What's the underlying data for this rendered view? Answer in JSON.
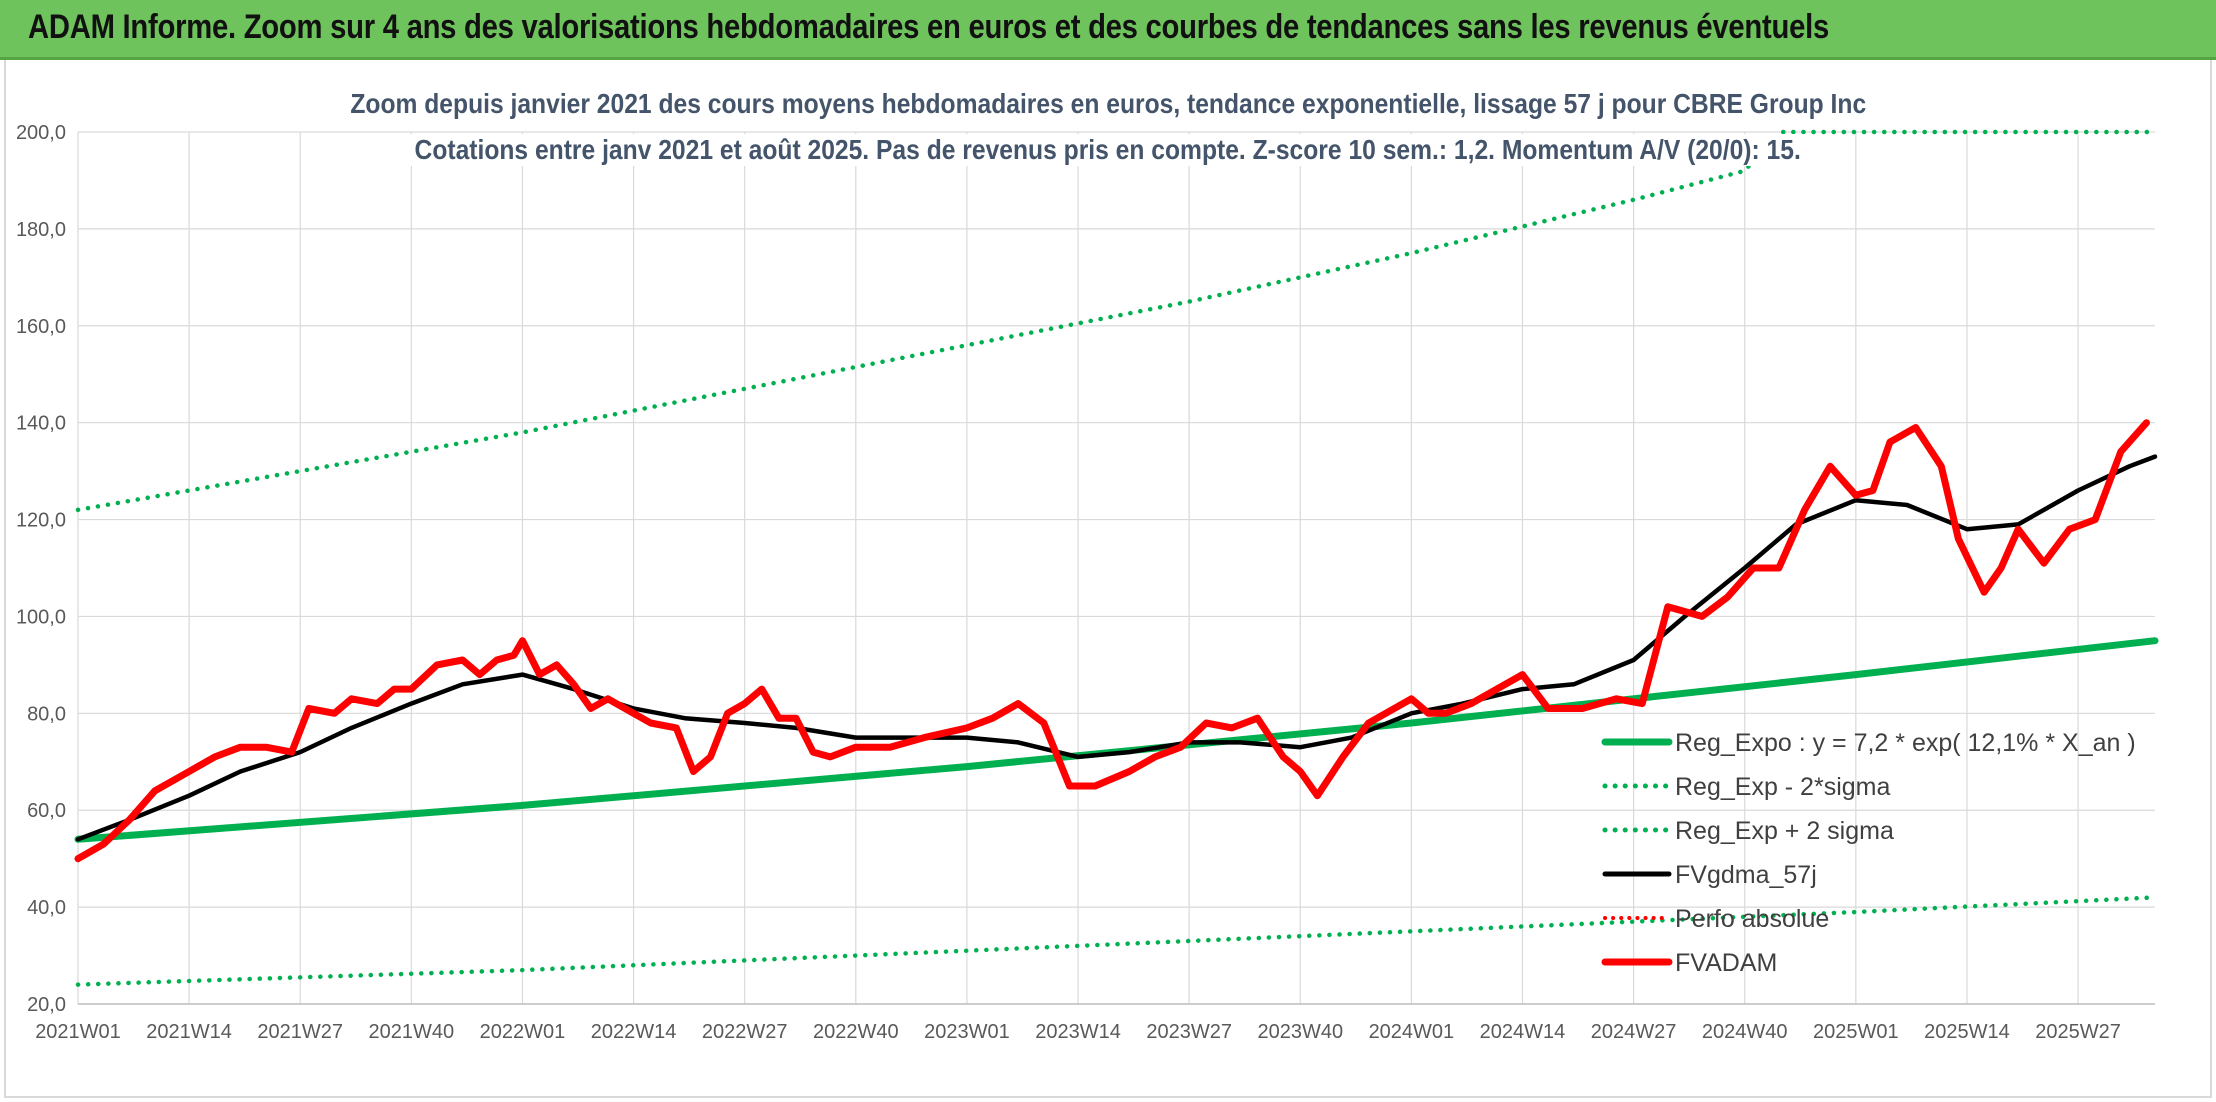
{
  "banner": {
    "title": "ADAM Informe. Zoom sur 4 ans des valorisations hebdomadaires en euros et des courbes de tendances sans les revenus éventuels"
  },
  "chart_data": {
    "type": "line",
    "title": "ADAM Informe. Zoom sur 4 ans des valorisations hebdomadaires en euros et des courbes de tendances sans les revenus éventuels",
    "subtitle": [
      "Zoom depuis janvier 2021 des cours moyens hebdomadaires en euros, tendance exponentielle, lissage 57 j pour CBRE Group Inc",
      "Cotations entre janv 2021 et août 2025. Pas de revenus pris en compte. Z-score 10 sem.: 1,2. Momentum A/V (20/0): 15."
    ],
    "xlabel": "",
    "ylabel": "",
    "x_ticks": [
      "2021W01",
      "2021W14",
      "2021W27",
      "2021W40",
      "2022W01",
      "2022W14",
      "2022W27",
      "2022W40",
      "2023W01",
      "2023W14",
      "2023W27",
      "2023W40",
      "2024W01",
      "2024W14",
      "2024W27",
      "2024W40",
      "2025W01",
      "2025W14",
      "2025W27"
    ],
    "ylim": [
      20,
      200
    ],
    "y_ticks": [
      20,
      40,
      60,
      80,
      100,
      120,
      140,
      160,
      180,
      200
    ],
    "y_tick_labels": [
      "20,0",
      "40,0",
      "60,0",
      "80,0",
      "100,0",
      "120,0",
      "140,0",
      "160,0",
      "180,0",
      "200,0"
    ],
    "grid": true,
    "legend_position": "right",
    "legend": [
      "Reg_Expo : y = 7,2 * exp( 12,1% *  X_an )",
      "Reg_Exp - 2*sigma",
      "Reg_Exp + 2 sigma",
      "FVgdma_57j",
      "Perfo absolue",
      "FVADAM"
    ],
    "colors": {
      "trend": "#00b050",
      "band": "#00b050",
      "smooth": "#000000",
      "perfo": "#ff0000",
      "price": "#ff0000"
    },
    "series": [
      {
        "name": "Reg_Expo : y = 7,2 * exp( 12,1% *  X_an )",
        "style": "solid-thick",
        "x": [
          "2021W01",
          "2022W01",
          "2023W01",
          "2024W01",
          "2025W01",
          "2025W36"
        ],
        "values": [
          54,
          61,
          69,
          78,
          88,
          95
        ]
      },
      {
        "name": "Reg_Exp - 2*sigma",
        "style": "dotted",
        "x": [
          "2021W01",
          "2022W01",
          "2023W01",
          "2024W01",
          "2025W01",
          "2025W36"
        ],
        "values": [
          24,
          27,
          31,
          35,
          39,
          42
        ]
      },
      {
        "name": "Reg_Exp + 2 sigma",
        "style": "dotted",
        "x": [
          "2021W01",
          "2021W27",
          "2022W01",
          "2022W27",
          "2023W01",
          "2023W27",
          "2024W01",
          "2024W27",
          "2024W40",
          "2024W44",
          "2025W02",
          "2025W36"
        ],
        "values": [
          122,
          130,
          138,
          147,
          156,
          165,
          175,
          186,
          192,
          200,
          200,
          200
        ]
      },
      {
        "name": "FVgdma_57j",
        "style": "solid",
        "x": [
          "2021W01",
          "2021W07",
          "2021W14",
          "2021W20",
          "2021W27",
          "2021W33",
          "2021W40",
          "2021W46",
          "2022W01",
          "2022W07",
          "2022W14",
          "2022W20",
          "2022W27",
          "2022W33",
          "2022W40",
          "2022W46",
          "2023W01",
          "2023W07",
          "2023W14",
          "2023W20",
          "2023W27",
          "2023W33",
          "2023W40",
          "2023W46",
          "2024W01",
          "2024W07",
          "2024W14",
          "2024W20",
          "2024W27",
          "2024W33",
          "2024W40",
          "2024W46",
          "2025W01",
          "2025W07",
          "2025W14",
          "2025W20",
          "2025W27",
          "2025W33",
          "2025W36"
        ],
        "values": [
          54,
          58,
          63,
          68,
          72,
          77,
          82,
          86,
          88,
          85,
          81,
          79,
          78,
          77,
          75,
          75,
          75,
          74,
          71,
          72,
          74,
          74,
          73,
          75,
          80,
          82,
          85,
          86,
          91,
          100,
          110,
          119,
          124,
          123,
          118,
          119,
          126,
          131,
          133
        ]
      },
      {
        "name": "FVADAM",
        "style": "solid-thick",
        "x": [
          "2021W01",
          "2021W04",
          "2021W07",
          "2021W10",
          "2021W12",
          "2021W14",
          "2021W17",
          "2021W20",
          "2021W23",
          "2021W26",
          "2021W28",
          "2021W31",
          "2021W33",
          "2021W36",
          "2021W38",
          "2021W40",
          "2021W43",
          "2021W46",
          "2021W48",
          "2021W50",
          "2021W52",
          "2022W01",
          "2022W03",
          "2022W05",
          "2022W07",
          "2022W09",
          "2022W11",
          "2022W13",
          "2022W16",
          "2022W19",
          "2022W21",
          "2022W23",
          "2022W25",
          "2022W27",
          "2022W29",
          "2022W31",
          "2022W33",
          "2022W35",
          "2022W37",
          "2022W40",
          "2022W44",
          "2022W48",
          "2023W01",
          "2023W04",
          "2023W07",
          "2023W10",
          "2023W13",
          "2023W16",
          "2023W20",
          "2023W23",
          "2023W26",
          "2023W29",
          "2023W32",
          "2023W35",
          "2023W38",
          "2023W40",
          "2023W42",
          "2023W45",
          "2023W48",
          "2024W01",
          "2024W03",
          "2024W05",
          "2024W08",
          "2024W11",
          "2024W14",
          "2024W17",
          "2024W21",
          "2024W25",
          "2024W28",
          "2024W31",
          "2024W35",
          "2024W38",
          "2024W41",
          "2024W44",
          "2024W47",
          "2024W50",
          "2025W01",
          "2025W03",
          "2025W05",
          "2025W08",
          "2025W11",
          "2025W13",
          "2025W16",
          "2025W18",
          "2025W20",
          "2025W23",
          "2025W26",
          "2025W29",
          "2025W32",
          "2025W35"
        ],
        "values": [
          50,
          53,
          58,
          64,
          66,
          68,
          71,
          73,
          73,
          72,
          81,
          80,
          83,
          82,
          85,
          85,
          90,
          91,
          88,
          91,
          92,
          95,
          88,
          90,
          86,
          81,
          83,
          81,
          78,
          77,
          68,
          71,
          80,
          82,
          85,
          79,
          79,
          72,
          71,
          73,
          73,
          75,
          77,
          79,
          82,
          78,
          65,
          65,
          68,
          71,
          73,
          78,
          77,
          79,
          71,
          68,
          63,
          71,
          78,
          83,
          80,
          80,
          82,
          85,
          88,
          81,
          81,
          83,
          82,
          102,
          100,
          104,
          110,
          110,
          122,
          131,
          125,
          126,
          136,
          139,
          131,
          116,
          105,
          110,
          118,
          111,
          118,
          120,
          134,
          140
        ]
      }
    ]
  }
}
